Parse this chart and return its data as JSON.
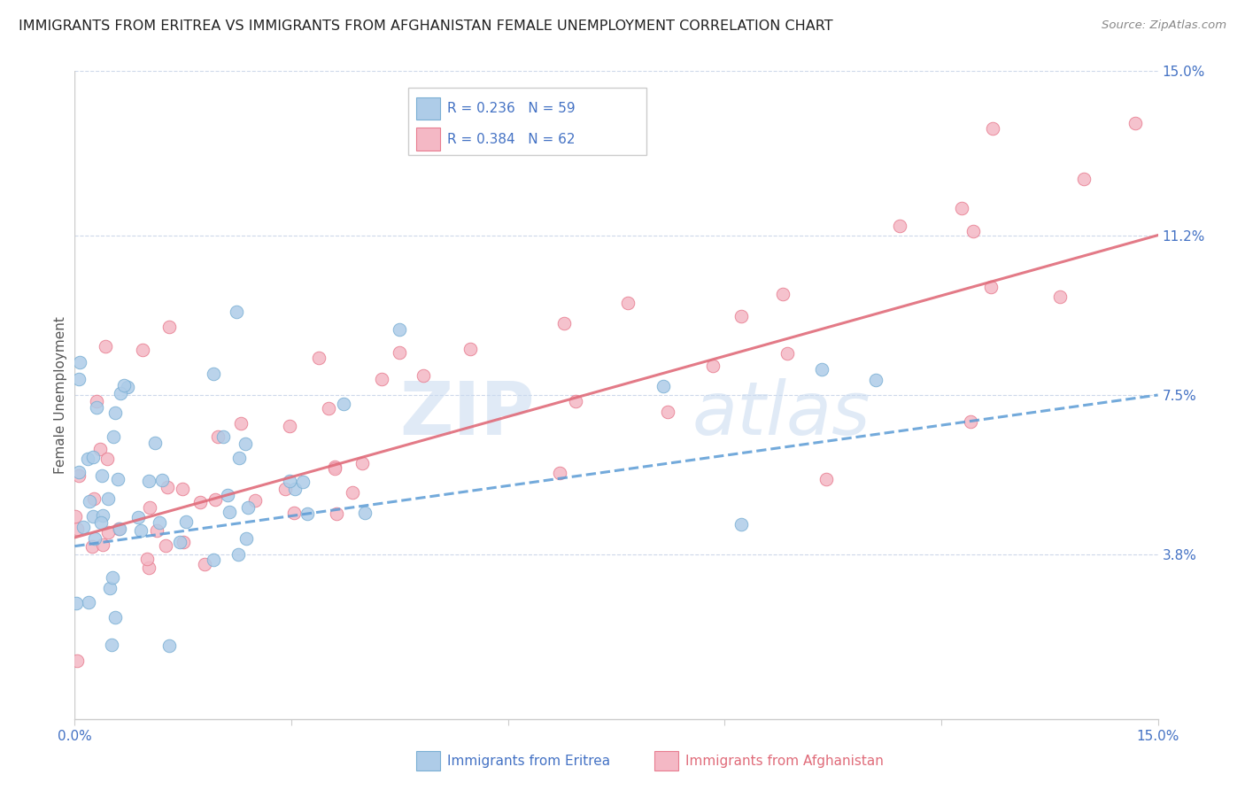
{
  "title": "IMMIGRANTS FROM ERITREA VS IMMIGRANTS FROM AFGHANISTAN FEMALE UNEMPLOYMENT CORRELATION CHART",
  "source": "Source: ZipAtlas.com",
  "ylabel": "Female Unemployment",
  "xlim": [
    0,
    0.15
  ],
  "ylim": [
    0,
    0.15
  ],
  "ytick_labels_right": [
    "3.8%",
    "7.5%",
    "11.2%",
    "15.0%"
  ],
  "ytick_vals_right": [
    0.038,
    0.075,
    0.112,
    0.15
  ],
  "series1_color": "#aecce8",
  "series1_edge": "#7aafd4",
  "series2_color": "#f4b8c5",
  "series2_edge": "#e87d90",
  "line1_color": "#5b9bd5",
  "line2_color": "#e06c7a",
  "label1": "Immigrants from Eritrea",
  "label2": "Immigrants from Afghanistan",
  "watermark_zip": "ZIP",
  "watermark_atlas": "atlas",
  "background_color": "#ffffff",
  "grid_color": "#c8d4e8",
  "title_fontsize": 11.5,
  "source_fontsize": 9.5,
  "tick_fontsize": 11,
  "ylabel_fontsize": 11
}
